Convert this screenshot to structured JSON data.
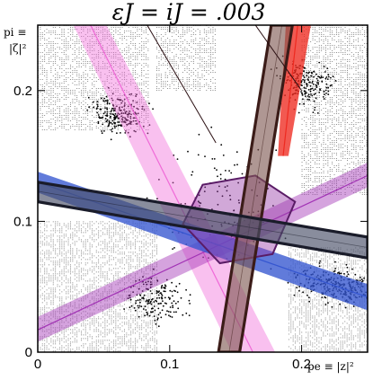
{
  "chart_data": {
    "type": "scatter",
    "title": "εJ = iJ = .003",
    "xlabel": "pe ≡ |z|²",
    "ylabel_line1": "pi ≡",
    "ylabel_line2": "|ζ|²",
    "xlim": [
      0,
      0.25
    ],
    "ylim": [
      0,
      0.25
    ],
    "x_ticks": [
      {
        "value": 0,
        "label": "0"
      },
      {
        "value": 0.1,
        "label": "0.1"
      },
      {
        "value": 0.2,
        "label": "0.2"
      }
    ],
    "y_ticks": [
      {
        "value": 0,
        "label": "0"
      },
      {
        "value": 0.1,
        "label": "0.1"
      },
      {
        "value": 0.2,
        "label": "0.2"
      }
    ],
    "grid": false,
    "point_color": "#000000",
    "point_clusters": [
      {
        "cx": 0.062,
        "cy": 0.182,
        "sx": 0.014,
        "sy": 0.01,
        "n": 220
      },
      {
        "cx": 0.205,
        "cy": 0.205,
        "sx": 0.014,
        "sy": 0.012,
        "n": 200
      },
      {
        "cx": 0.09,
        "cy": 0.04,
        "sx": 0.016,
        "sy": 0.012,
        "n": 170
      },
      {
        "cx": 0.235,
        "cy": 0.05,
        "sx": 0.01,
        "sy": 0.01,
        "n": 140
      },
      {
        "cx": 0.215,
        "cy": 0.052,
        "sx": 0.014,
        "sy": 0.01,
        "n": 110
      },
      {
        "cx": 0.14,
        "cy": 0.115,
        "sx": 0.03,
        "sy": 0.03,
        "n": 120
      }
    ],
    "hatched_regions": [
      {
        "name": "upper-left",
        "x": [
          0.0,
          0.085
        ],
        "y": [
          0.17,
          0.25
        ]
      },
      {
        "name": "upper-right",
        "x": [
          0.2,
          0.25
        ],
        "y": [
          0.12,
          0.25
        ]
      },
      {
        "name": "lower-left",
        "x": [
          0.0,
          0.09
        ],
        "y": [
          0.0,
          0.1
        ]
      },
      {
        "name": "lower-right",
        "x": [
          0.19,
          0.25
        ],
        "y": [
          0.0,
          0.08
        ]
      },
      {
        "name": "top-middle",
        "x": [
          0.09,
          0.135
        ],
        "y": [
          0.2,
          0.25
        ]
      }
    ],
    "bands": [
      {
        "name": "pink-band",
        "color": "#f06ad8",
        "opacity": 0.42,
        "polygon": [
          [
            0.027,
            0.25
          ],
          [
            0.052,
            0.25
          ],
          [
            0.18,
            0.0
          ],
          [
            0.147,
            0.0
          ]
        ],
        "center": [
          [
            0.04,
            0.25
          ],
          [
            0.163,
            0.0
          ]
        ]
      },
      {
        "name": "purple-band",
        "color": "#a233b5",
        "opacity": 0.45,
        "polygon": [
          [
            0.0,
            0.008
          ],
          [
            0.0,
            0.027
          ],
          [
            0.25,
            0.145
          ],
          [
            0.25,
            0.126
          ]
        ],
        "center": [
          [
            0.0,
            0.017
          ],
          [
            0.25,
            0.135
          ]
        ]
      },
      {
        "name": "red-band",
        "color": "#ee2a20",
        "opacity": 0.78,
        "polygon": [
          [
            0.188,
            0.25
          ],
          [
            0.207,
            0.25
          ],
          [
            0.19,
            0.15
          ],
          [
            0.182,
            0.15
          ]
        ],
        "center": [
          [
            0.197,
            0.25
          ],
          [
            0.186,
            0.15
          ]
        ]
      },
      {
        "name": "blue-band",
        "color": "#3556d0",
        "opacity": 0.78,
        "polygon": [
          [
            0.0,
            0.138
          ],
          [
            0.0,
            0.122
          ],
          [
            0.25,
            0.032
          ],
          [
            0.25,
            0.052
          ]
        ],
        "center": [
          [
            0.0,
            0.13
          ],
          [
            0.25,
            0.042
          ]
        ]
      }
    ],
    "outlined_bands": [
      {
        "name": "dark-vertical-band",
        "fill": "#7e5750",
        "opacity": 0.62,
        "stroke": "#3b1c18",
        "polygon": [
          [
            0.177,
            0.25
          ],
          [
            0.193,
            0.25
          ],
          [
            0.153,
            0.0
          ],
          [
            0.137,
            0.0
          ]
        ],
        "center": [
          [
            0.185,
            0.25
          ],
          [
            0.145,
            0.0
          ]
        ]
      },
      {
        "name": "dark-horizontal-band",
        "fill": "#4a5068",
        "opacity": 0.65,
        "stroke": "#1a1c2a",
        "polygon": [
          [
            0.0,
            0.13
          ],
          [
            0.0,
            0.115
          ],
          [
            0.25,
            0.072
          ],
          [
            0.25,
            0.088
          ]
        ],
        "center": [
          [
            0.0,
            0.123
          ],
          [
            0.25,
            0.08
          ]
        ]
      }
    ],
    "central_polygon": {
      "fill": "#9a3fa8",
      "opacity": 0.45,
      "stroke": "#5a1c66",
      "points": [
        [
          0.11,
          0.098
        ],
        [
          0.125,
          0.128
        ],
        [
          0.165,
          0.135
        ],
        [
          0.195,
          0.115
        ],
        [
          0.178,
          0.075
        ],
        [
          0.138,
          0.068
        ]
      ]
    },
    "extra_lines": [
      {
        "color": "#2a0f12",
        "points": [
          [
            0.083,
            0.25
          ],
          [
            0.135,
            0.16
          ]
        ]
      },
      {
        "color": "#2a0f12",
        "points": [
          [
            0.165,
            0.25
          ],
          [
            0.2,
            0.2
          ]
        ]
      }
    ]
  }
}
